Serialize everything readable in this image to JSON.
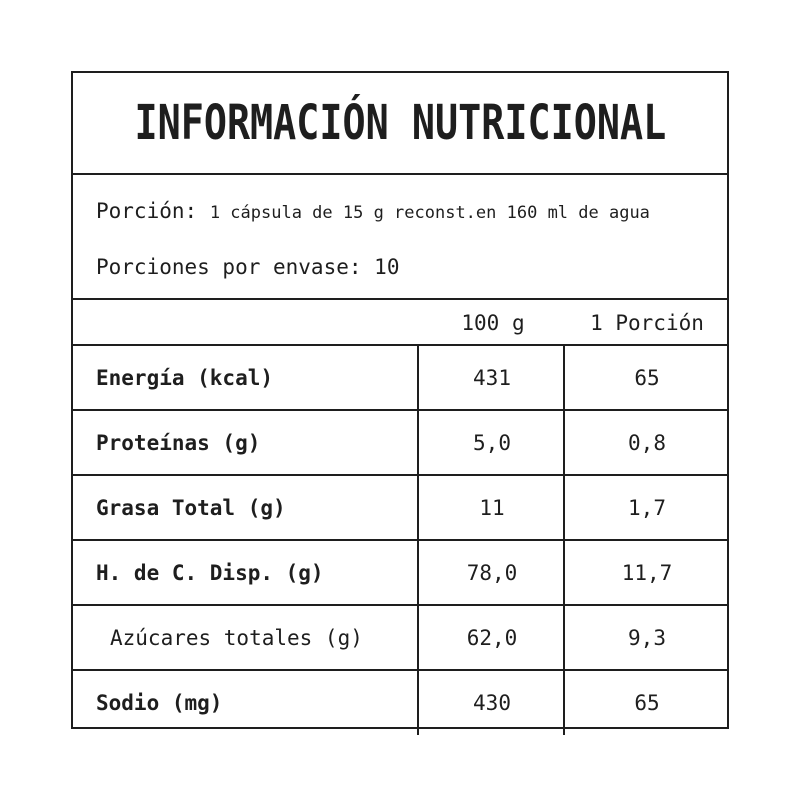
{
  "title": "INFORMACIÓN NUTRICIONAL",
  "serving": {
    "label": "Porción:",
    "value": "1 cápsula de 15 g reconst.en 160 ml de agua",
    "servings_label": "Porciones por envase:",
    "servings_value": "10"
  },
  "header": {
    "col_100g": "100 g",
    "col_portion": "1 Porción"
  },
  "rows": [
    {
      "name": "Energía (kcal)",
      "v100": "431",
      "vpor": "65"
    },
    {
      "name": "Proteínas (g)",
      "v100": "5,0",
      "vpor": "0,8"
    },
    {
      "name": "Grasa Total (g)",
      "v100": "11",
      "vpor": "1,7"
    },
    {
      "name": "H. de C. Disp. (g)",
      "v100": "78,0",
      "vpor": "11,7"
    },
    {
      "name": "Azúcares totales (g)",
      "v100": "62,0",
      "vpor": "9,3"
    },
    {
      "name": "Sodio (mg)",
      "v100": "430",
      "vpor": "65"
    }
  ]
}
